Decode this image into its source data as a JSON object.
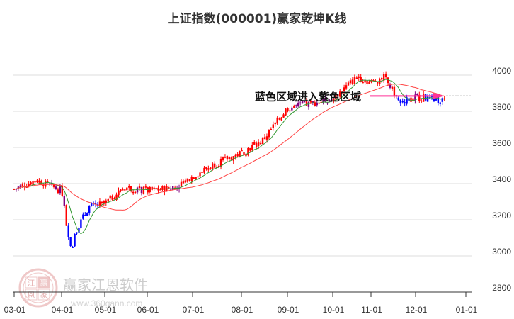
{
  "title": "上证指数(000001)赢家乾坤K线",
  "chart_data": {
    "type": "candlestick",
    "title": "上证指数(000001)赢家乾坤K线",
    "xlabel": "",
    "ylabel": "",
    "ylim": [
      2800,
      4100
    ],
    "y_ticks": [
      4000,
      3800,
      3600,
      3400,
      3200,
      3000,
      2800
    ],
    "x_ticks": [
      "03-01",
      "04-01",
      "05-01",
      "06-01",
      "07-01",
      "08-01",
      "09-01",
      "10-01",
      "11-01",
      "12-01",
      "01-01"
    ],
    "grid": true,
    "y_axis_position": "right",
    "candle_colors": {
      "red": "#ff0000",
      "blue": "#0000ff",
      "purple": "#800080"
    },
    "line_colors": {
      "short_ma": "#339933",
      "long_ma": "#ff4444"
    },
    "annotation": {
      "text": "蓝色区域进入紫色区域",
      "arrow_color": "#ff3399",
      "reference_level": 3885
    },
    "series": [
      {
        "name": "close",
        "approx_monthly": [
          {
            "x": "03-01",
            "value": 3370
          },
          {
            "x": "03-15",
            "value": 3420
          },
          {
            "x": "04-01",
            "value": 3360
          },
          {
            "x": "04-08",
            "value": 3100
          },
          {
            "x": "04-20",
            "value": 3270
          },
          {
            "x": "05-01",
            "value": 3290
          },
          {
            "x": "05-15",
            "value": 3380
          },
          {
            "x": "06-01",
            "value": 3360
          },
          {
            "x": "06-20",
            "value": 3380
          },
          {
            "x": "07-01",
            "value": 3440
          },
          {
            "x": "07-15",
            "value": 3510
          },
          {
            "x": "08-01",
            "value": 3570
          },
          {
            "x": "08-15",
            "value": 3640
          },
          {
            "x": "09-01",
            "value": 3820
          },
          {
            "x": "09-15",
            "value": 3840
          },
          {
            "x": "10-01",
            "value": 3870
          },
          {
            "x": "10-20",
            "value": 3990
          },
          {
            "x": "11-01",
            "value": 3960
          },
          {
            "x": "11-10",
            "value": 3990
          },
          {
            "x": "11-20",
            "value": 3850
          },
          {
            "x": "12-01",
            "value": 3880
          },
          {
            "x": "12-20",
            "value": 3860
          }
        ]
      }
    ]
  },
  "annotation_text": "蓝色区域进入紫色区域",
  "watermark": {
    "name": "赢家江恩软件",
    "url": "www.360gann.com",
    "logo_chars": [
      "江",
      "赢",
      "恩",
      "家"
    ]
  }
}
